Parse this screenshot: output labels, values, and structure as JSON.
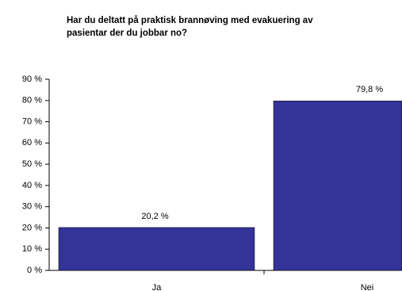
{
  "chart_data": {
    "type": "bar",
    "title": [
      "Har du deltatt på praktisk brannøving med evakuering av",
      "pasientar der du jobbar no?"
    ],
    "categories": [
      "Ja",
      "Nei"
    ],
    "values": [
      20.2,
      79.8
    ],
    "value_labels": [
      "20,2 %",
      "79,8 %"
    ],
    "color": "#333399",
    "ylim": [
      0,
      90
    ],
    "yticks": [
      {
        "value": 0,
        "label": "0 %"
      },
      {
        "value": 10,
        "label": "10 %"
      },
      {
        "value": 20,
        "label": "20 %"
      },
      {
        "value": 30,
        "label": "30 %"
      },
      {
        "value": 40,
        "label": "40 %"
      },
      {
        "value": 50,
        "label": "50 %"
      },
      {
        "value": 60,
        "label": "60 %"
      },
      {
        "value": 70,
        "label": "70 %"
      },
      {
        "value": 80,
        "label": "80 %"
      },
      {
        "value": 90,
        "label": "90 %"
      }
    ],
    "grid": false
  }
}
